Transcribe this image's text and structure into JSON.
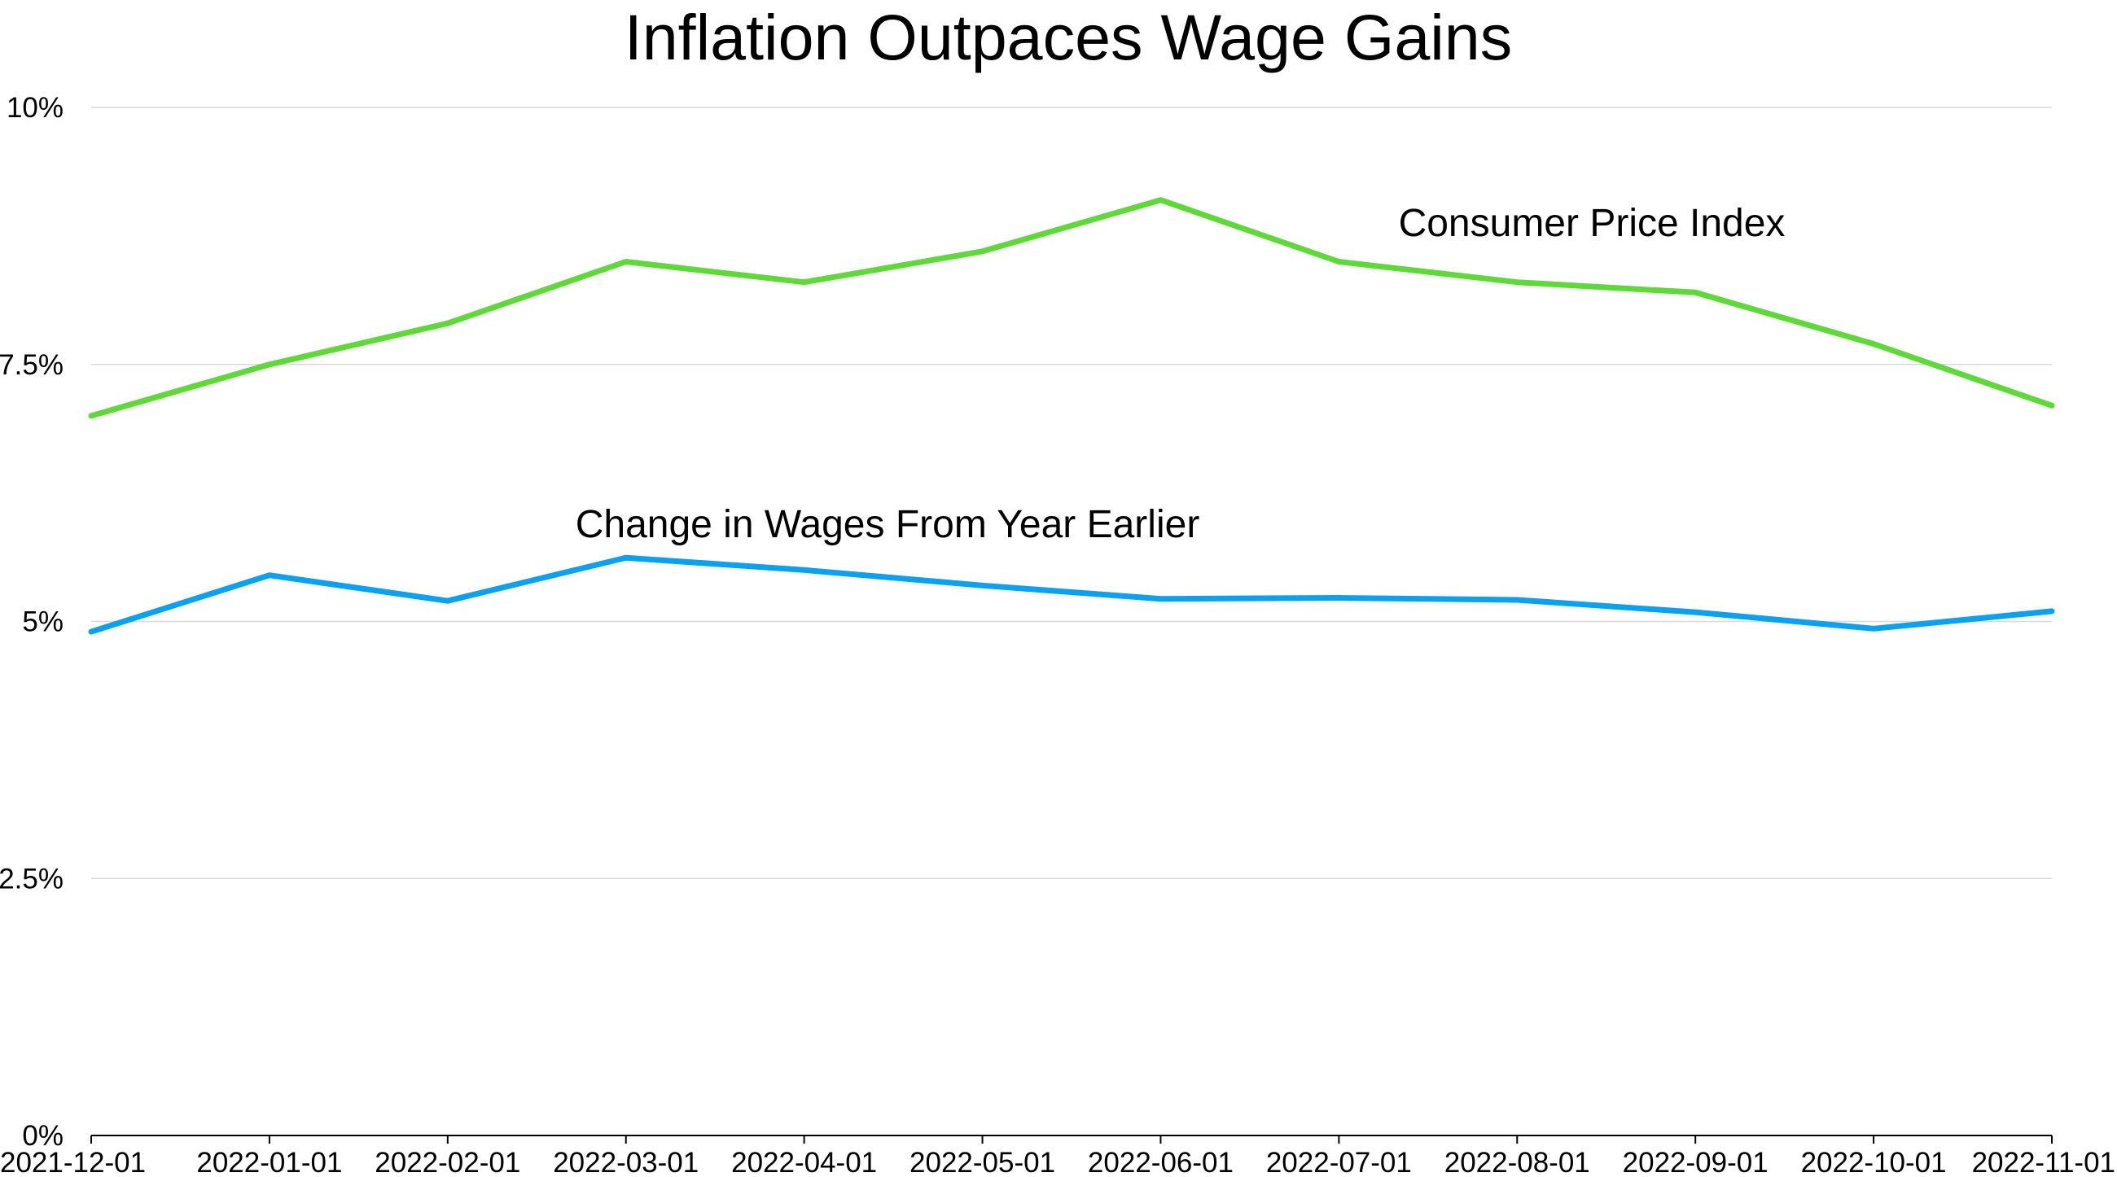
{
  "chart_data": {
    "type": "line",
    "title": "Inflation Outpaces Wage Gains",
    "xlabel": "",
    "ylabel": "",
    "categories": [
      "2021-12-01",
      "2022-01-01",
      "2022-02-01",
      "2022-03-01",
      "2022-04-01",
      "2022-05-01",
      "2022-06-01",
      "2022-07-01",
      "2022-08-01",
      "2022-09-01",
      "2022-10-01",
      "2022-11-01"
    ],
    "ylim": [
      0,
      10
    ],
    "yticks": [
      0,
      2.5,
      5,
      7.5,
      10
    ],
    "ytick_labels": [
      "0%",
      "2.5%",
      "5%",
      "7.5%",
      "10%"
    ],
    "grid": true,
    "legend": "none",
    "series": [
      {
        "name": "Consumer Price Index",
        "color": "#5fd93a",
        "values": [
          7.0,
          7.5,
          7.9,
          8.5,
          8.3,
          8.6,
          9.1,
          8.5,
          8.3,
          8.2,
          7.7,
          7.1
        ]
      },
      {
        "name": "Change in Wages From Year Earlier",
        "color": "#0aa1f0",
        "values": [
          4.9,
          5.45,
          5.2,
          5.62,
          5.5,
          5.35,
          5.22,
          5.23,
          5.21,
          5.09,
          4.93,
          5.1
        ]
      }
    ]
  }
}
